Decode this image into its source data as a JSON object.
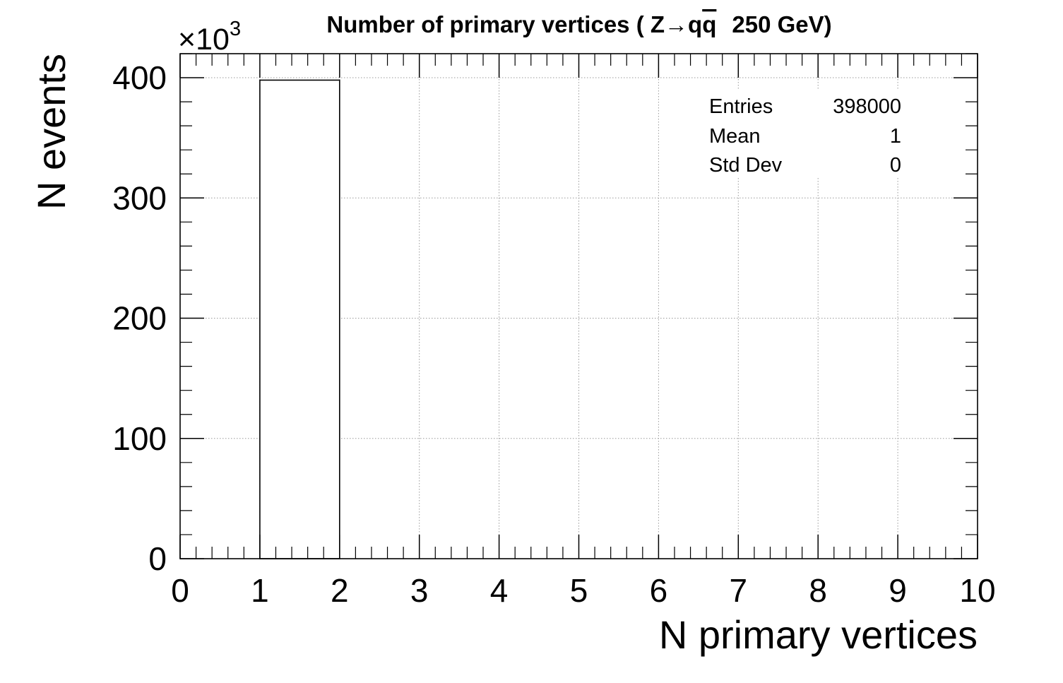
{
  "chart_data": {
    "type": "bar",
    "title_prefix": "Number of primary vertices ( Z",
    "title_arrow": "→",
    "title_q": "q",
    "title_qbar": "q",
    "title_suffix": "250 GeV)",
    "xlabel": "N primary vertices",
    "ylabel": "N events",
    "y_exponent_times": "×10",
    "y_exponent_power": "3",
    "xlim": [
      0,
      10
    ],
    "ylim": [
      0,
      420
    ],
    "x_ticks": [
      "0",
      "1",
      "2",
      "3",
      "4",
      "5",
      "6",
      "7",
      "8",
      "9",
      "10"
    ],
    "y_ticks": [
      "0",
      "100",
      "200",
      "300",
      "400"
    ],
    "bins": [
      {
        "low": 1,
        "high": 2,
        "value": 398
      }
    ],
    "grid": true,
    "stats": {
      "placement": "top-right",
      "rows": [
        {
          "label": "Entries",
          "value": "398000"
        },
        {
          "label": "Mean",
          "value": "1"
        },
        {
          "label": "Std Dev",
          "value": "0"
        }
      ]
    }
  }
}
